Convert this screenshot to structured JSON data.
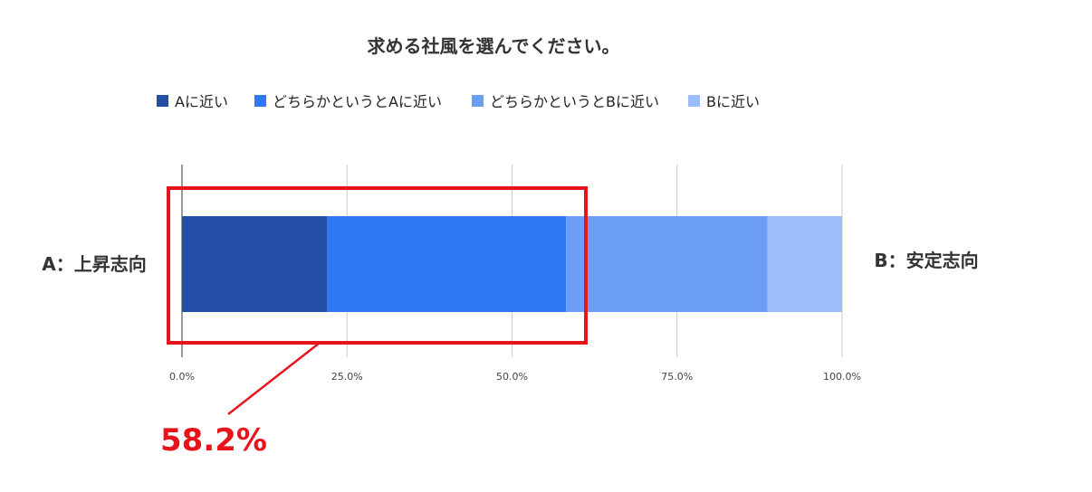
{
  "chart_data": {
    "type": "bar",
    "orientation": "horizontal",
    "stacked": true,
    "title": "求める社風を選んでください。",
    "categories": [
      ""
    ],
    "series": [
      {
        "name": "Aに近い",
        "values": [
          22.0
        ],
        "color": "#254ea6"
      },
      {
        "name": "どちらかというとAに近い",
        "values": [
          36.2
        ],
        "color": "#2f79f5"
      },
      {
        "name": "どちらかというとBに近い",
        "values": [
          30.5
        ],
        "color": "#6d9ef5"
      },
      {
        "name": "Bに近い",
        "values": [
          11.3
        ],
        "color": "#9bbdf8"
      }
    ],
    "xlim": [
      0,
      100
    ],
    "xticks": [
      "0.0%",
      "25.0%",
      "50.0%",
      "75.0%",
      "100.0%"
    ],
    "grid": true,
    "legend_position": "top",
    "left_label": "A：上昇志向",
    "right_label": "B：安定志向",
    "annotation": {
      "text": "58.2%",
      "value": 58.2,
      "color": "#e8141b"
    }
  }
}
